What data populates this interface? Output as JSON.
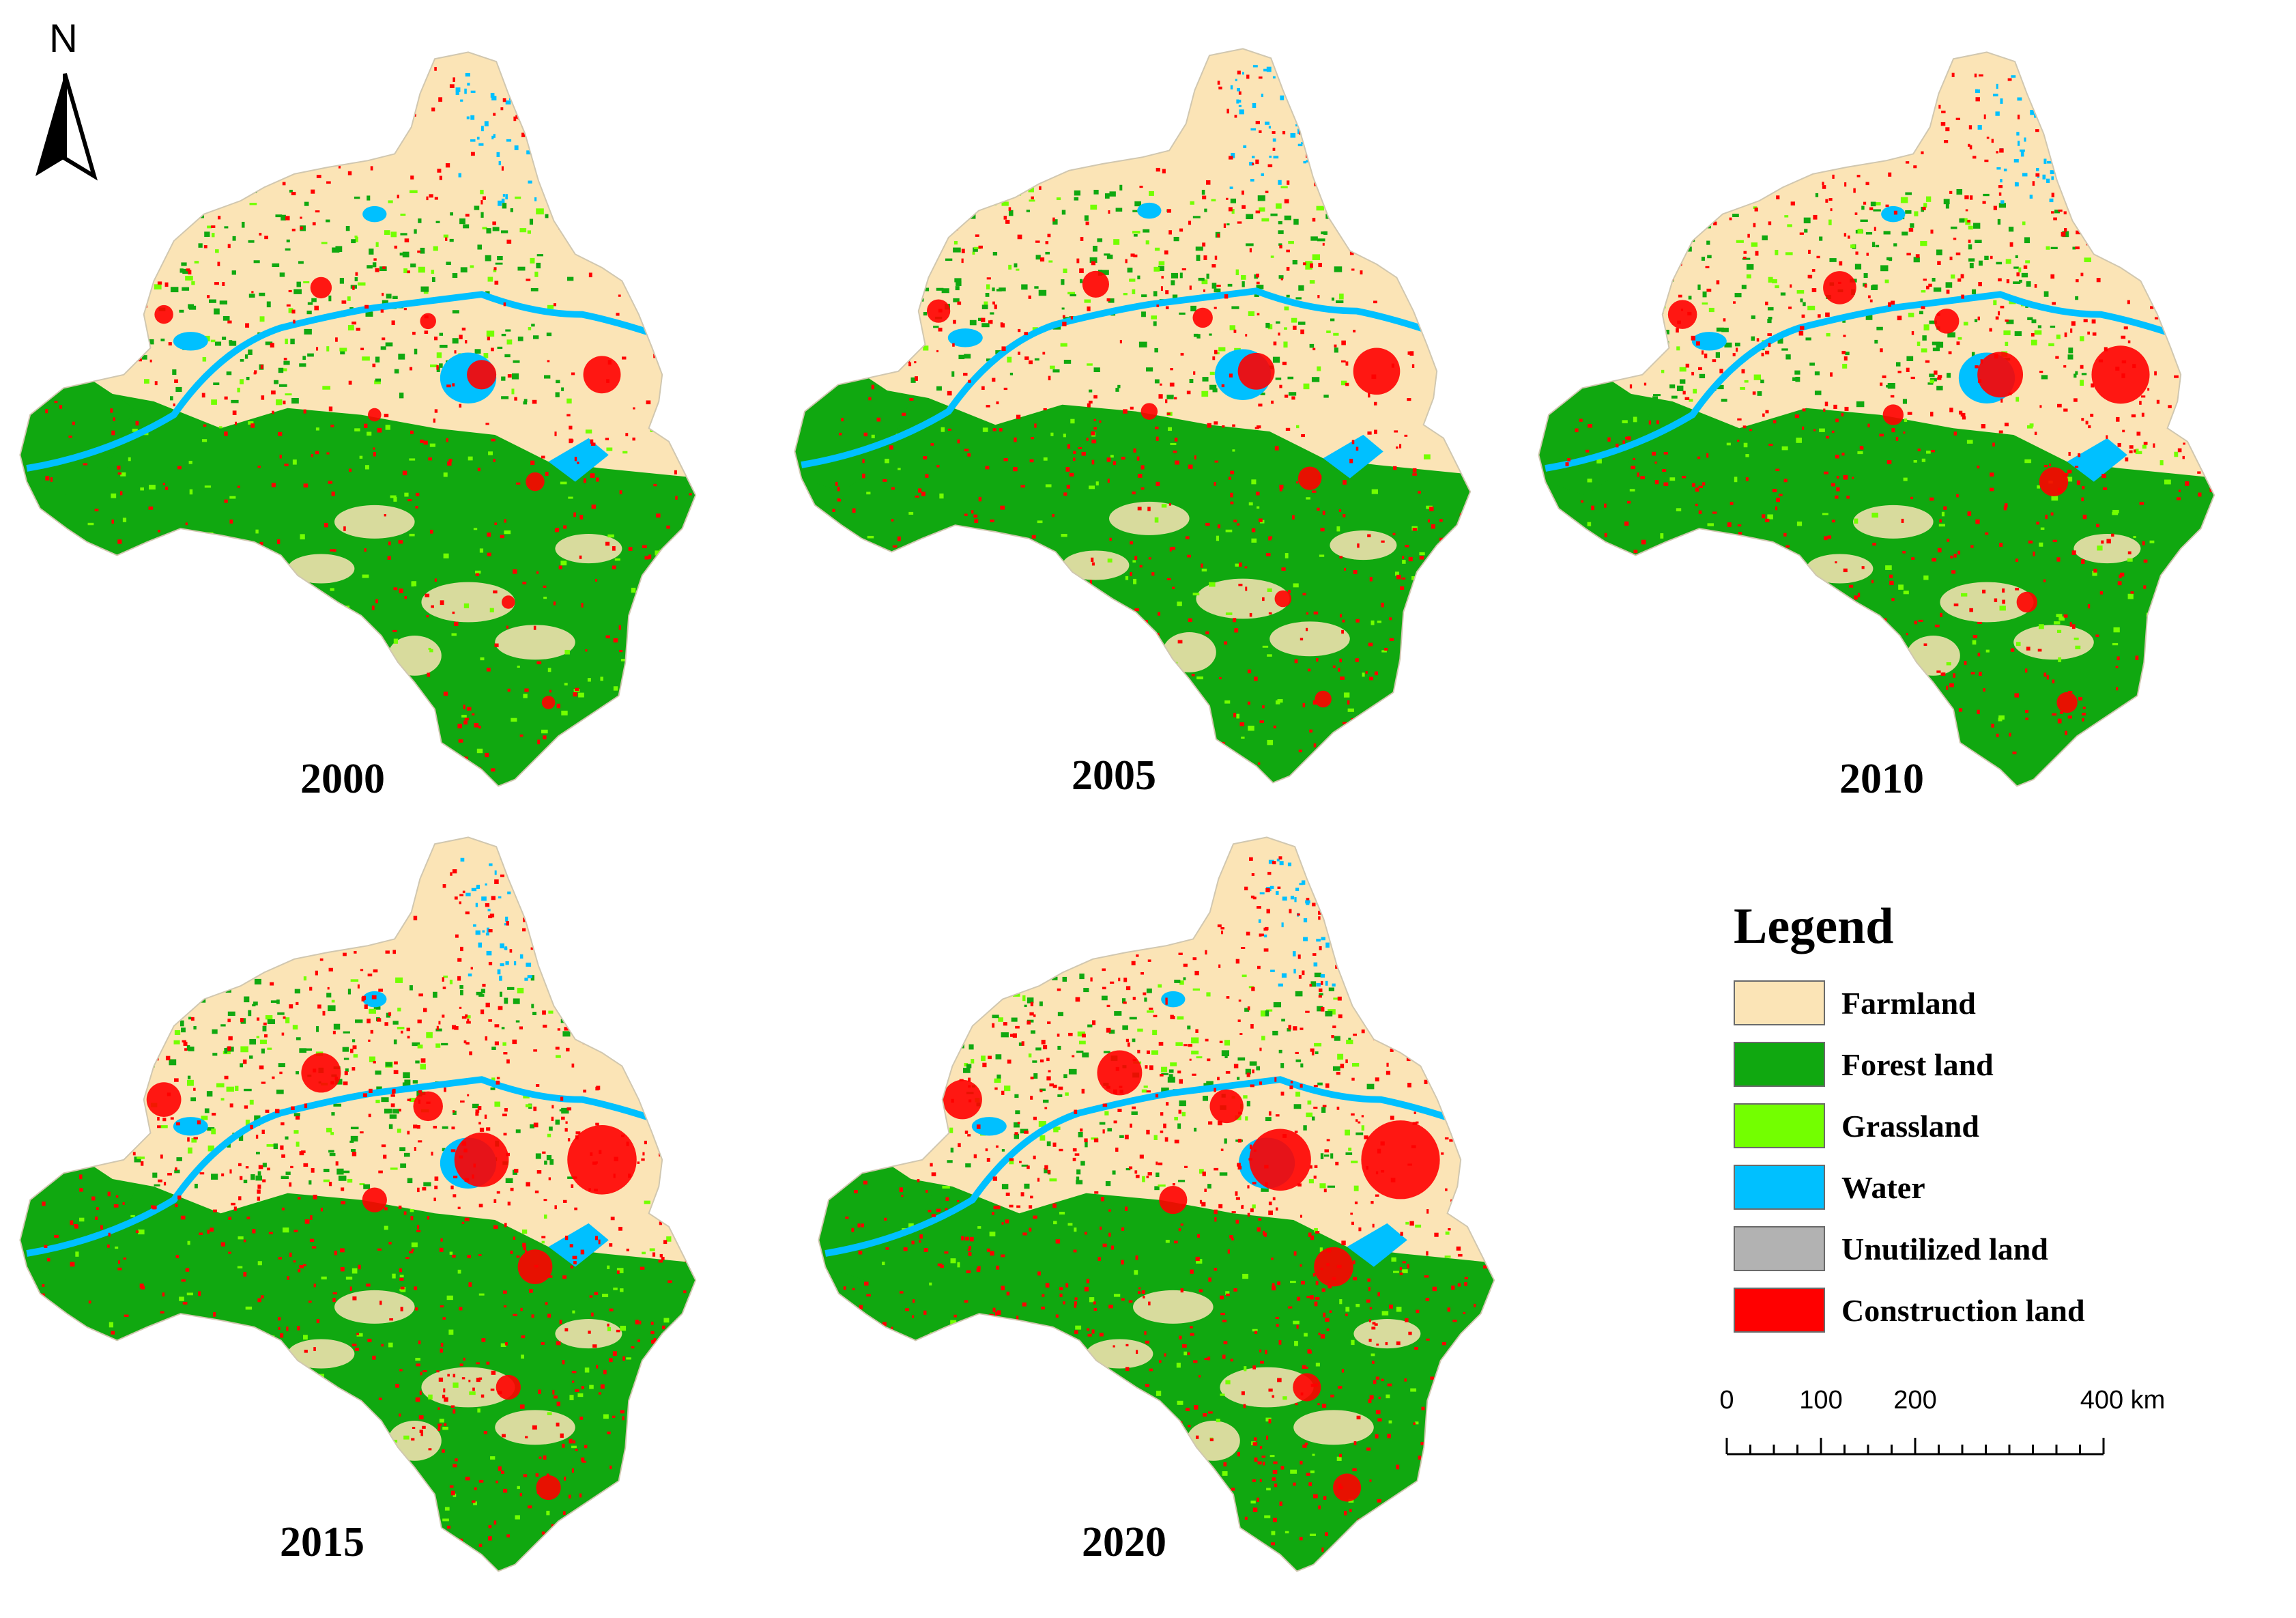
{
  "north_arrow": {
    "letter": "N"
  },
  "panels": [
    {
      "year": "2000",
      "urban": 1.0
    },
    {
      "year": "2005",
      "urban": 1.25
    },
    {
      "year": "2010",
      "urban": 1.55
    },
    {
      "year": "2015",
      "urban": 1.85
    },
    {
      "year": "2020",
      "urban": 2.1
    }
  ],
  "legend": {
    "title": "Legend",
    "items": [
      {
        "label": "Farmland",
        "color": "#fbe4b6"
      },
      {
        "label": "Forest land",
        "color": "#10a810"
      },
      {
        "label": "Grassland",
        "color": "#73ff00"
      },
      {
        "label": "Water",
        "color": "#00c0ff"
      },
      {
        "label": "Unutilized land",
        "color": "#b2b2b2"
      },
      {
        "label": "Construction land",
        "color": "#ff0000"
      }
    ]
  },
  "scale_bar": {
    "labels": [
      "0",
      "100",
      "200",
      "400 km"
    ],
    "values_km": [
      0,
      100,
      200,
      400
    ]
  }
}
